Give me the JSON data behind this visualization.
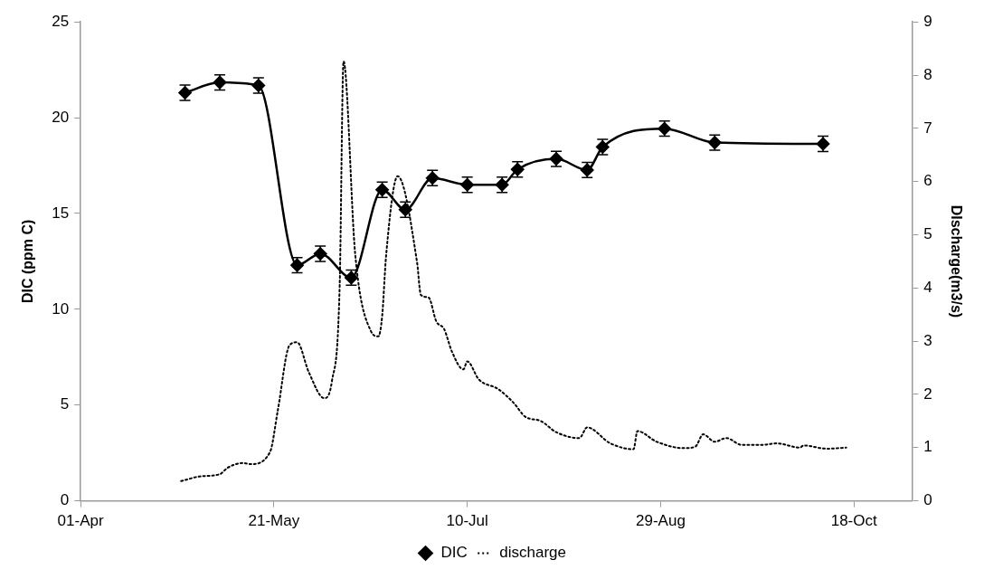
{
  "chart_data": {
    "type": "line",
    "ylabel": "DIC (ppm C)",
    "y2label": "DIscharge(m3/s)",
    "xlim": [
      "--04-01",
      "--11-02"
    ],
    "xticks": [
      {
        "value": "--04-01",
        "label": "01-Apr"
      },
      {
        "value": "--05-21",
        "label": "21-May"
      },
      {
        "value": "--07-10",
        "label": "10-Jul"
      },
      {
        "value": "--08-29",
        "label": "29-Aug"
      },
      {
        "value": "--10-18",
        "label": "18-Oct"
      }
    ],
    "ylim": [
      0,
      25
    ],
    "yticks": [
      0,
      5,
      10,
      15,
      20,
      25
    ],
    "y2lim": [
      0,
      9
    ],
    "y2ticks": [
      0,
      1,
      2,
      3,
      4,
      5,
      6,
      7,
      8,
      9
    ],
    "legend": "bottom",
    "series": [
      {
        "name": "DIC",
        "color": "#000000",
        "marker": "diamond",
        "line_style": "solid",
        "x": [
          "--04-28",
          "--05-07",
          "--05-17",
          "--05-27",
          "--06-02",
          "--06-10",
          "--06-18",
          "--06-24",
          "--07-01",
          "--07-10",
          "--07-19",
          "--07-23",
          "--08-02",
          "--08-10",
          "--08-14",
          "--08-30",
          "--09-12",
          "--10-10"
        ],
        "values": [
          21.3,
          21.84,
          21.68,
          12.3,
          12.9,
          11.65,
          16.24,
          15.2,
          16.85,
          16.5,
          16.5,
          17.3,
          17.85,
          17.27,
          18.47,
          19.43,
          18.7,
          18.63
        ],
        "errors": [
          0.4,
          0.4,
          0.4,
          0.4,
          0.4,
          0.4,
          0.4,
          0.4,
          0.4,
          0.4,
          0.4,
          0.4,
          0.4,
          0.4,
          0.4,
          0.4,
          0.4,
          0.4
        ]
      },
      {
        "name": "discharge",
        "color": "#000000",
        "marker": "none",
        "line_style": "dotted",
        "axis": "y2",
        "x": [
          "--04-27",
          "--05-02",
          "--05-07",
          "--05-09",
          "--05-13",
          "--05-15",
          "--05-20",
          "--05-22",
          "--05-25",
          "--05-27",
          "--05-30",
          "--06-03",
          "--06-05",
          "--06-07",
          "--06-08",
          "--06-11",
          "--06-15",
          "--06-17",
          "--06-18",
          "--06-19",
          "--06-22",
          "--06-27",
          "--06-28",
          "--06-30",
          "--07-02",
          "--07-04",
          "--07-06",
          "--07-09",
          "--07-10",
          "--07-13",
          "--07-18",
          "--07-22",
          "--07-25",
          "--07-29",
          "--08-02",
          "--08-08",
          "--08-10",
          "--08-16",
          "--08-22",
          "--08-23",
          "--08-28",
          "--09-04",
          "--09-07",
          "--09-09",
          "--09-12",
          "--09-15",
          "--09-19",
          "--09-24",
          "--09-28",
          "--10-04",
          "--10-05",
          "--10-11",
          "--10-16"
        ],
        "values": [
          0.37,
          0.46,
          0.5,
          0.62,
          0.71,
          0.69,
          0.92,
          1.7,
          2.92,
          2.98,
          2.42,
          1.93,
          2.25,
          4.04,
          8.26,
          4.65,
          3.2,
          3.09,
          3.48,
          4.6,
          6.1,
          4.49,
          3.87,
          3.82,
          3.37,
          3.23,
          2.81,
          2.47,
          2.62,
          2.28,
          2.1,
          1.84,
          1.58,
          1.5,
          1.29,
          1.18,
          1.38,
          1.08,
          0.97,
          1.31,
          1.11,
          0.99,
          1.02,
          1.25,
          1.11,
          1.18,
          1.05,
          1.05,
          1.08,
          1.0,
          1.04,
          0.98,
          1.0
        ]
      }
    ]
  }
}
